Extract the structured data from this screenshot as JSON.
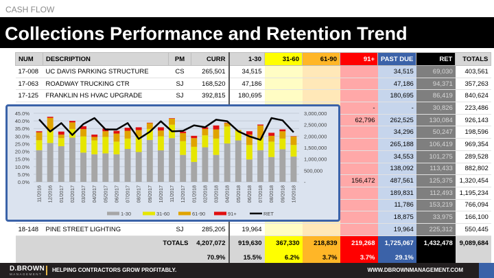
{
  "kicker": "CASH FLOW",
  "title": "Collections Performance and Retention Trend",
  "table": {
    "headers": [
      "NUM",
      "DESCRIPTION",
      "PM",
      "CURR",
      "1-30",
      "31-60",
      "61-90",
      "91+",
      "PAST DUE",
      "RET",
      "TOTALS"
    ],
    "rows": [
      [
        "17-008",
        "UC DAVIS PARKING STRUCTURE",
        "CS",
        "265,501",
        "34,515",
        "",
        "",
        "",
        "34,515",
        "69,030",
        "403,561"
      ],
      [
        "17-063",
        "ROADWAY TRUCKING CTR",
        "SJ",
        "168,520",
        "47,186",
        "",
        "",
        "",
        "47,186",
        "94,371",
        "357,263"
      ],
      [
        "17-125",
        "FRANKLIN HS HVAC UPGRADE",
        "SJ",
        "392,815",
        "180,695",
        "",
        "",
        "",
        "180,695",
        "86,419",
        "840,624"
      ],
      [
        "",
        "",
        "",
        "",
        "",
        "",
        "",
        "-",
        "-",
        "30,826",
        "223,486"
      ],
      [
        "",
        "",
        "",
        "",
        "",
        "",
        "",
        "62,796",
        "262,525",
        "130,084",
        "926,143"
      ],
      [
        "",
        "",
        "",
        "",
        "",
        "",
        "",
        "",
        "34,296",
        "50,247",
        "198,596"
      ],
      [
        "",
        "",
        "",
        "",
        "",
        "",
        "",
        "",
        "265,188",
        "106,419",
        "969,354"
      ],
      [
        "",
        "",
        "",
        "",
        "",
        "",
        "",
        "",
        "34,553",
        "101,275",
        "289,528"
      ],
      [
        "",
        "",
        "",
        "",
        "",
        "",
        "",
        "",
        "138,092",
        "113,433",
        "882,802"
      ],
      [
        "",
        "",
        "",
        "",
        "",
        "",
        "",
        "156,472",
        "487,561",
        "125,375",
        "1,320,454"
      ],
      [
        "",
        "",
        "",
        "",
        "",
        "",
        "",
        "",
        "189,831",
        "112,493",
        "1,195,234"
      ],
      [
        "",
        "",
        "",
        "",
        "",
        "",
        "",
        "",
        "11,786",
        "153,219",
        "766,094"
      ],
      [
        "",
        "",
        "",
        "",
        "",
        "",
        "",
        "",
        "18,875",
        "33,975",
        "166,100"
      ],
      [
        "18-148",
        "PINE STREET LIGHTING",
        "SJ",
        "285,205",
        "19,964",
        "",
        "",
        "",
        "19,964",
        "225,312",
        "550,445"
      ]
    ],
    "totals_label": "TOTALS",
    "totals": [
      "4,207,072",
      "919,630",
      "367,330",
      "218,839",
      "219,268",
      "1,725,067",
      "1,432,478",
      "9,089,684"
    ],
    "percents": [
      "70.9%",
      "15.5%",
      "6.2%",
      "3.7%",
      "3.7%",
      "29.1%",
      "",
      ""
    ]
  },
  "chart_data": {
    "type": "bar",
    "stacked": true,
    "categories": [
      "11/2016",
      "12/2016",
      "01/2017",
      "02/2017",
      "03/2017",
      "04/2017",
      "05/2017",
      "06/2017",
      "07/2017",
      "08/2017",
      "09/2017",
      "10/2017",
      "11/2017",
      "12/2017",
      "01/2018",
      "02/2018",
      "03/2018",
      "04/2018",
      "05/2018",
      "06/2018",
      "07/2018",
      "08/2018",
      "09/2018",
      "10/2018"
    ],
    "y_left": {
      "ticks": [
        "0.0%",
        "5.0%",
        "10.0%",
        "15.0%",
        "20.0%",
        "25.0%",
        "30.0%",
        "35.0%",
        "40.0%",
        "45.0%"
      ],
      "range": [
        0,
        45
      ]
    },
    "y_right": {
      "ticks": [
        "-",
        "500,000",
        "1,000,000",
        "1,500,000",
        "2,000,000",
        "2,500,000",
        "3,000,000"
      ],
      "range": [
        0,
        3000000
      ]
    },
    "series": [
      {
        "name": "1-30",
        "color": "#a6a6a6",
        "axis": "left",
        "values": [
          20.8,
          25.5,
          23.4,
          29.0,
          19.2,
          18.1,
          18.7,
          18.1,
          21.6,
          19.6,
          27.5,
          20.7,
          28.7,
          17.7,
          13.1,
          22.7,
          17.7,
          25.2,
          27.2,
          14.7,
          20.8,
          16.3,
          21.4,
          16.6
        ]
      },
      {
        "name": "31-60",
        "color": "#e6e600",
        "axis": "left",
        "values": [
          6.5,
          8.2,
          5.3,
          5.7,
          10.6,
          9.1,
          10.8,
          8.3,
          6.8,
          10.2,
          7.2,
          9.2,
          8.8,
          9.0,
          9.9,
          7.8,
          10.7,
          11.1,
          6.0,
          9.5,
          7.9,
          10.1,
          7.0,
          7.6
        ]
      },
      {
        "name": "61-90",
        "color": "#e0a400",
        "axis": "left",
        "values": [
          5.2,
          8.3,
          2.3,
          4.3,
          4.8,
          2.3,
          3.7,
          5.3,
          5.1,
          4.2,
          3.8,
          3.8,
          4.0,
          5.3,
          5.7,
          4.2,
          6.0,
          2.2,
          0.8,
          6.8,
          8.3,
          3.8,
          4.8,
          5.6
        ]
      },
      {
        "name": "91+",
        "color": "#e01010",
        "axis": "left",
        "values": [
          0.7,
          0.7,
          2.0,
          1.0,
          1.9,
          1.5,
          1.8,
          1.8,
          2.0,
          1.8,
          0.3,
          2.1,
          0.3,
          1.0,
          1.5,
          1.1,
          2.6,
          0.3,
          0,
          2.2,
          0.6,
          2.0,
          1.2,
          0.2
        ]
      },
      {
        "name": "RET",
        "color": "#000000",
        "type": "line",
        "axis": "right",
        "values": [
          2730000,
          2200000,
          2570000,
          2050000,
          2530000,
          2790000,
          2290000,
          2290000,
          2570000,
          1880000,
          2190000,
          2650000,
          2210000,
          2230000,
          2470000,
          2390000,
          2720000,
          2650000,
          2210000,
          1990000,
          1840000,
          2790000,
          2690000,
          2170000
        ]
      }
    ],
    "legend": "bottom-right"
  },
  "footer": {
    "logo": "D.BROWN",
    "logo_sub": "MANAGEMENT",
    "tagline": "HELPING CONTRACTORS GROW PROFITABLY.",
    "url": "WWW.DBROWNMANAGEMENT.COM"
  }
}
